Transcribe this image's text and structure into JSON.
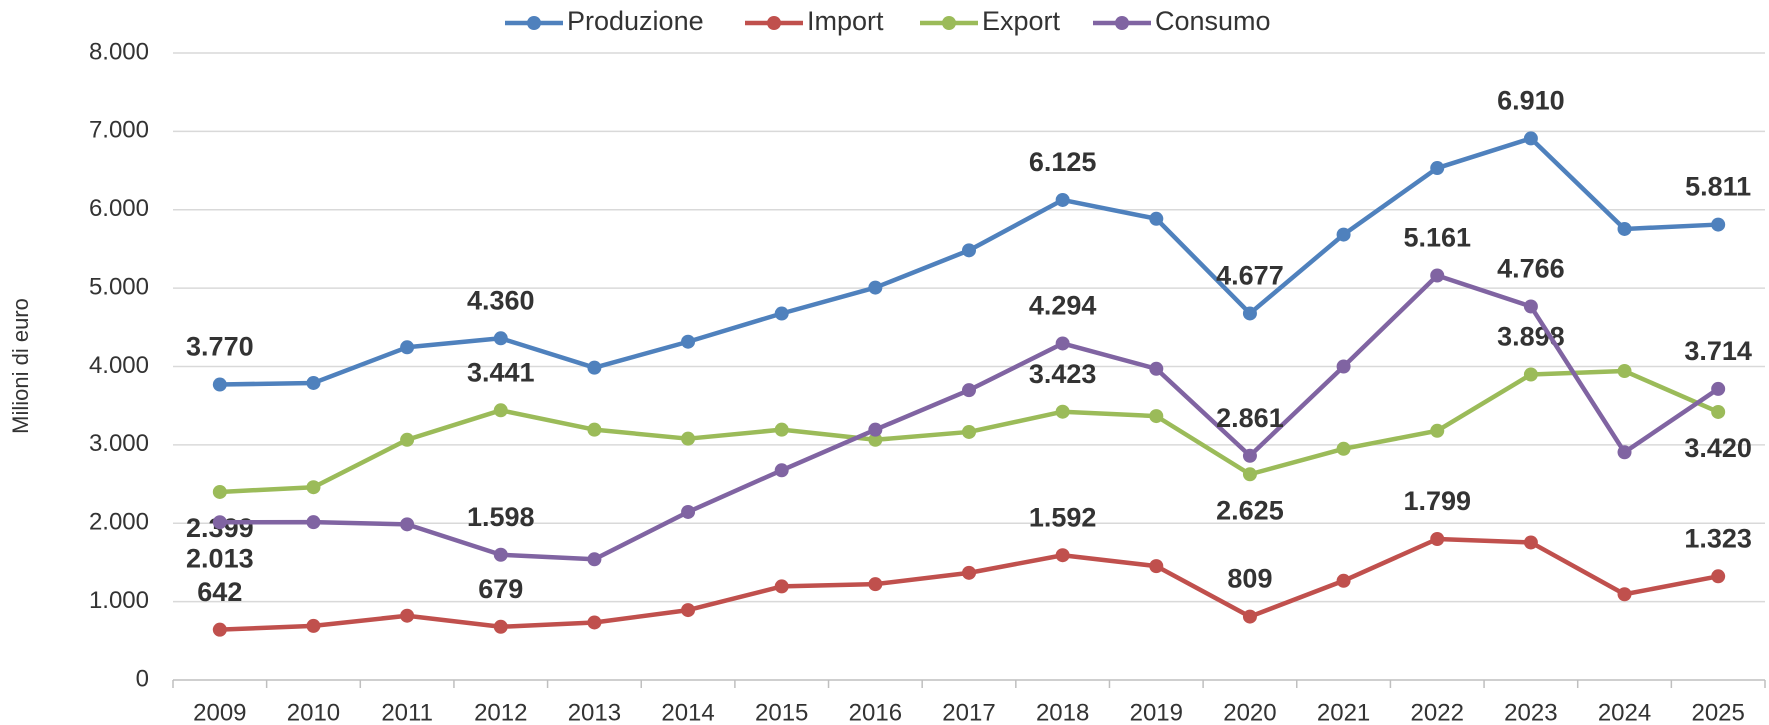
{
  "chart_data": {
    "type": "line",
    "y_label": "Milioni di euro",
    "categories": [
      "2009",
      "2010",
      "2011",
      "2012",
      "2013",
      "2014",
      "2015",
      "2016",
      "2017",
      "2018",
      "2019",
      "2020",
      "2021",
      "2022",
      "2023",
      "2024",
      "2025"
    ],
    "ylim": [
      0,
      8000
    ],
    "yticks": [
      0,
      {
        "value": 1000,
        "label": "1.000"
      },
      {
        "value": 2000,
        "label": "2.000"
      },
      {
        "value": 3000,
        "label": "3.000"
      },
      {
        "value": 4000,
        "label": "4.000"
      },
      {
        "value": 5000,
        "label": "5.000"
      },
      {
        "value": 6000,
        "label": "6.000"
      },
      {
        "value": 7000,
        "label": "7.000"
      },
      {
        "value": 8000,
        "label": "8.000"
      }
    ],
    "grid": true,
    "legend": "top",
    "series": [
      {
        "name": "Produzione",
        "color": "#4f81bd",
        "label_color": "#4f81bd",
        "values": [
          3770,
          3790,
          4245,
          4360,
          3985,
          4316,
          4676,
          5007,
          5482,
          6125,
          5885,
          4677,
          5683,
          6532,
          6910,
          5755,
          5811
        ],
        "value_labels": [
          "3.770",
          null,
          null,
          "4.360",
          null,
          null,
          null,
          null,
          null,
          "6.125",
          null,
          "4.677",
          null,
          null,
          "6.910",
          null,
          "5.811"
        ]
      },
      {
        "name": "Import",
        "color": "#c0504d",
        "label_color": "#c0504d",
        "values": [
          642,
          690,
          820,
          679,
          734,
          892,
          1194,
          1223,
          1367,
          1592,
          1453,
          809,
          1266,
          1799,
          1755,
          1094,
          1323
        ],
        "value_labels": [
          "642",
          null,
          null,
          "679",
          null,
          null,
          null,
          null,
          null,
          "1.592",
          null,
          "809",
          null,
          "1.799",
          null,
          null,
          "1.323"
        ]
      },
      {
        "name": "Export",
        "color": "#9bbb59",
        "label_color": "#77933c",
        "values": [
          2399,
          2460,
          3065,
          3441,
          3194,
          3079,
          3194,
          3065,
          3165,
          3423,
          3367,
          2625,
          2950,
          3180,
          3898,
          3942,
          3420
        ],
        "value_labels": [
          "2.399",
          null,
          null,
          "3.441",
          null,
          null,
          null,
          null,
          null,
          "3.423",
          null,
          "2.625",
          null,
          null,
          "3.898",
          null,
          "3.420"
        ]
      },
      {
        "name": "Consumo",
        "color": "#8064a2",
        "label_color": "#8064a2",
        "values": [
          2013,
          2014,
          1986,
          1598,
          1540,
          2144,
          2676,
          3194,
          3698,
          4294,
          3971,
          2861,
          4000,
          5161,
          4766,
          2906,
          3714
        ],
        "value_labels": [
          "2.013",
          null,
          null,
          "1.598",
          null,
          null,
          null,
          null,
          null,
          "4.294",
          null,
          "2.861",
          null,
          "5.161",
          "4.766",
          null,
          "3.714"
        ]
      }
    ]
  }
}
